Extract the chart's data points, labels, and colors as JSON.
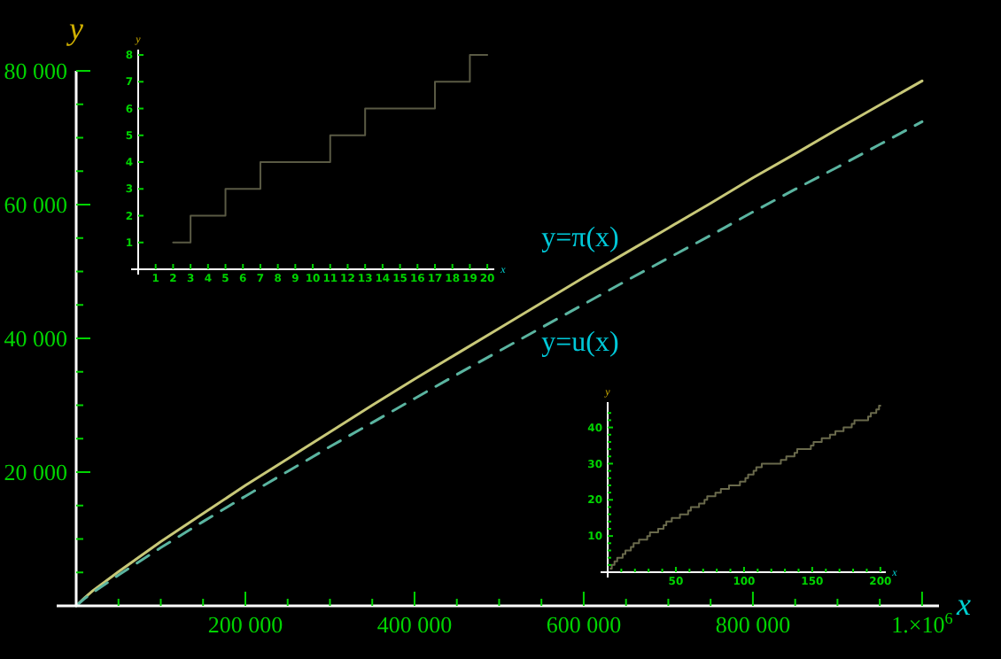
{
  "chart_data": [
    {
      "type": "line",
      "xlabel": "x",
      "ylabel": "y",
      "xlim": [
        0,
        1020000
      ],
      "ylim": [
        0,
        80000
      ],
      "xticks": [
        {
          "value": 50000,
          "label": null
        },
        {
          "value": 100000,
          "label": null
        },
        {
          "value": 150000,
          "label": null
        },
        {
          "value": 200000,
          "label": "200 000"
        },
        {
          "value": 250000,
          "label": null
        },
        {
          "value": 300000,
          "label": null
        },
        {
          "value": 350000,
          "label": null
        },
        {
          "value": 400000,
          "label": "400 000"
        },
        {
          "value": 450000,
          "label": null
        },
        {
          "value": 500000,
          "label": null
        },
        {
          "value": 550000,
          "label": null
        },
        {
          "value": 600000,
          "label": "600 000"
        },
        {
          "value": 650000,
          "label": null
        },
        {
          "value": 700000,
          "label": null
        },
        {
          "value": 750000,
          "label": null
        },
        {
          "value": 800000,
          "label": "800 000"
        },
        {
          "value": 850000,
          "label": null
        },
        {
          "value": 900000,
          "label": null
        },
        {
          "value": 950000,
          "label": null
        },
        {
          "value": 1000000,
          "label": "1.×10$^{6}$"
        }
      ],
      "yticks": [
        {
          "value": 5000,
          "label": null
        },
        {
          "value": 10000,
          "label": null
        },
        {
          "value": 15000,
          "label": null
        },
        {
          "value": 20000,
          "label": "20 000"
        },
        {
          "value": 25000,
          "label": null
        },
        {
          "value": 30000,
          "label": null
        },
        {
          "value": 35000,
          "label": null
        },
        {
          "value": 40000,
          "label": "40 000"
        },
        {
          "value": 45000,
          "label": null
        },
        {
          "value": 50000,
          "label": null
        },
        {
          "value": 55000,
          "label": null
        },
        {
          "value": 60000,
          "label": "60 000"
        },
        {
          "value": 65000,
          "label": null
        },
        {
          "value": 70000,
          "label": null
        },
        {
          "value": 75000,
          "label": null
        },
        {
          "value": 80000,
          "label": "80 000"
        }
      ],
      "x": [
        0,
        10000,
        20000,
        50000,
        100000,
        150000,
        200000,
        250000,
        300000,
        350000,
        400000,
        450000,
        500000,
        550000,
        600000,
        650000,
        700000,
        750000,
        800000,
        850000,
        900000,
        950000,
        1000000
      ],
      "series": [
        {
          "name": "y=π(x)",
          "color": "#c8c878",
          "line_style": "solid",
          "values": [
            0,
            1200,
            2300,
            5100,
            9600,
            13800,
            18000,
            22000,
            26000,
            30000,
            33900,
            37700,
            41500,
            45300,
            49100,
            52800,
            56500,
            60200,
            64000,
            67600,
            71300,
            74900,
            78500
          ]
        },
        {
          "name": "y=u(x)",
          "color": "#5ab4a0",
          "line_style": "dashed",
          "values": [
            0,
            1100,
            2000,
            4600,
            8700,
            12600,
            16400,
            20100,
            23800,
            27400,
            31000,
            34600,
            38100,
            41600,
            45100,
            48600,
            52000,
            55400,
            58900,
            62300,
            65600,
            69000,
            72400
          ]
        }
      ]
    },
    {
      "type": "step",
      "xlabel": "x",
      "ylabel": "y",
      "xlim": [
        0,
        20.4
      ],
      "ylim": [
        0,
        8.2
      ],
      "xticks": [
        1,
        2,
        3,
        4,
        5,
        6,
        7,
        8,
        9,
        10,
        11,
        12,
        13,
        14,
        15,
        16,
        17,
        18,
        19,
        20
      ],
      "yticks": [
        1,
        2,
        3,
        4,
        5,
        6,
        7,
        8
      ],
      "x": [
        2,
        3,
        5,
        7,
        11,
        13,
        17,
        19,
        20
      ],
      "series": [
        {
          "color": "#5a5a44",
          "values": [
            1,
            2,
            3,
            4,
            5,
            6,
            7,
            8,
            8
          ]
        }
      ]
    },
    {
      "type": "step",
      "xlabel": "x",
      "ylabel": "y",
      "xlim": [
        0,
        204
      ],
      "ylim": [
        0,
        47
      ],
      "xticks": [
        {
          "value": 10,
          "label": null
        },
        {
          "value": 20,
          "label": null
        },
        {
          "value": 30,
          "label": null
        },
        {
          "value": 40,
          "label": null
        },
        50,
        {
          "value": 60,
          "label": null
        },
        {
          "value": 70,
          "label": null
        },
        {
          "value": 80,
          "label": null
        },
        {
          "value": 90,
          "label": null
        },
        100,
        {
          "value": 110,
          "label": null
        },
        {
          "value": 120,
          "label": null
        },
        {
          "value": 130,
          "label": null
        },
        {
          "value": 140,
          "label": null
        },
        150,
        {
          "value": 160,
          "label": null
        },
        {
          "value": 170,
          "label": null
        },
        {
          "value": 180,
          "label": null
        },
        {
          "value": 190,
          "label": null
        },
        200
      ],
      "yticks": [
        {
          "value": 2,
          "label": null
        },
        {
          "value": 4,
          "label": null
        },
        {
          "value": 6,
          "label": null
        },
        {
          "value": 8,
          "label": null
        },
        10,
        {
          "value": 12,
          "label": null
        },
        {
          "value": 14,
          "label": null
        },
        {
          "value": 16,
          "label": null
        },
        {
          "value": 18,
          "label": null
        },
        20,
        {
          "value": 22,
          "label": null
        },
        {
          "value": 24,
          "label": null
        },
        {
          "value": 26,
          "label": null
        },
        {
          "value": 28,
          "label": null
        },
        30,
        {
          "value": 32,
          "label": null
        },
        {
          "value": 34,
          "label": null
        },
        {
          "value": 36,
          "label": null
        },
        {
          "value": 38,
          "label": null
        },
        40,
        {
          "value": 42,
          "label": null
        },
        {
          "value": 44,
          "label": null
        }
      ],
      "x": [
        2,
        3,
        5,
        7,
        11,
        13,
        17,
        19,
        23,
        29,
        31,
        37,
        41,
        43,
        47,
        53,
        59,
        61,
        67,
        71,
        73,
        79,
        83,
        89,
        97,
        101,
        103,
        107,
        109,
        113,
        127,
        131,
        137,
        139,
        149,
        151,
        157,
        163,
        167,
        173,
        179,
        181,
        191,
        193,
        197,
        199,
        200
      ],
      "series": [
        {
          "color": "#6a6a4c",
          "values": [
            1,
            2,
            3,
            4,
            5,
            6,
            7,
            8,
            9,
            10,
            11,
            12,
            13,
            14,
            15,
            16,
            17,
            18,
            19,
            20,
            21,
            22,
            23,
            24,
            25,
            26,
            27,
            28,
            29,
            30,
            31,
            32,
            33,
            34,
            35,
            36,
            37,
            38,
            39,
            40,
            41,
            42,
            43,
            44,
            45,
            46,
            46
          ]
        }
      ]
    }
  ]
}
